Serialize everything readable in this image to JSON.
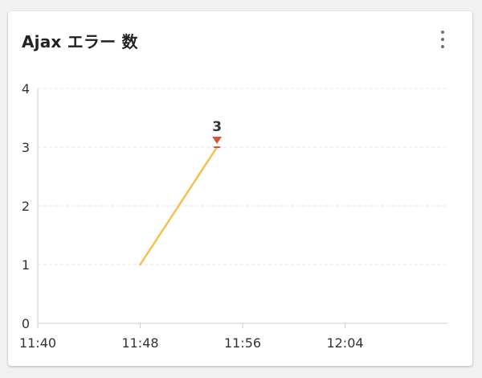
{
  "card": {
    "title": "Ajax エラー 数"
  },
  "menu": {
    "icon": "more-vert-icon"
  },
  "colors": {
    "line": "#f6bf4f",
    "peak_marker": "#d9543f",
    "grid": "#e6e6e6",
    "axis": "#cccccc"
  },
  "chart_data": {
    "type": "line",
    "title": "Ajax エラー 数",
    "xlabel": "",
    "ylabel": "",
    "x_ticks": [
      "11:40",
      "11:48",
      "11:56",
      "12:04"
    ],
    "xlim": [
      "11:40",
      "12:12"
    ],
    "ylim": [
      0,
      4
    ],
    "y_ticks": [
      "0",
      "1",
      "2",
      "3",
      "4"
    ],
    "grid": true,
    "legend": "none",
    "series": [
      {
        "points": [
          {
            "x": "11:48",
            "y": 1
          },
          {
            "x": "11:54",
            "y": 3
          }
        ]
      }
    ],
    "annotations": [
      {
        "x": "11:54",
        "y": 3,
        "label": "3"
      }
    ]
  }
}
